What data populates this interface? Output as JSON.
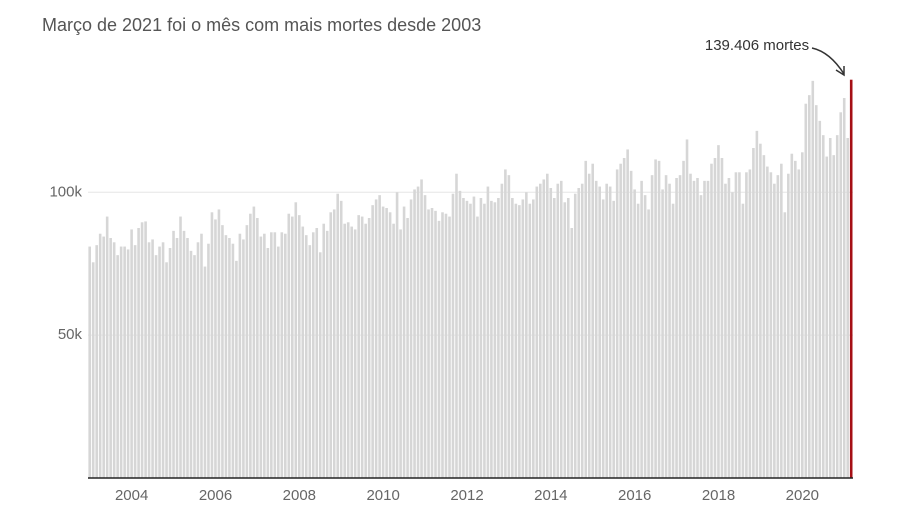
{
  "chart_data": {
    "type": "bar",
    "subtitle": "Março de 2021 foi o mês com mais mortes desde 2003",
    "annotation": "139.406 mortes",
    "color": "#d6d6d6",
    "highlight_color": "#a50f15",
    "ylim": [
      0,
      140000
    ],
    "yticks": [
      {
        "value": 50000,
        "label": "50k"
      },
      {
        "value": 100000,
        "label": "100k"
      }
    ],
    "grid": true,
    "categories": [
      null,
      null,
      null,
      null,
      null,
      null,
      null,
      null,
      null,
      null,
      null,
      null,
      "2004",
      null,
      null,
      null,
      null,
      null,
      null,
      null,
      null,
      null,
      null,
      null,
      null,
      null,
      null,
      null,
      null,
      null,
      null,
      null,
      null,
      null,
      null,
      null,
      "2006",
      null,
      null,
      null,
      null,
      null,
      null,
      null,
      null,
      null,
      null,
      null,
      null,
      null,
      null,
      null,
      null,
      null,
      null,
      null,
      null,
      null,
      null,
      null,
      "2008",
      null,
      null,
      null,
      null,
      null,
      null,
      null,
      null,
      null,
      null,
      null,
      null,
      null,
      null,
      null,
      null,
      null,
      null,
      null,
      null,
      null,
      null,
      null,
      "2010",
      null,
      null,
      null,
      null,
      null,
      null,
      null,
      null,
      null,
      null,
      null,
      null,
      null,
      null,
      null,
      null,
      null,
      null,
      null,
      null,
      null,
      null,
      null,
      "2012",
      null,
      null,
      null,
      null,
      null,
      null,
      null,
      null,
      null,
      null,
      null,
      null,
      null,
      null,
      null,
      null,
      null,
      null,
      null,
      null,
      null,
      null,
      null,
      "2014",
      null,
      null,
      null,
      null,
      null,
      null,
      null,
      null,
      null,
      null,
      null,
      null,
      null,
      null,
      null,
      null,
      null,
      null,
      null,
      null,
      null,
      null,
      null,
      "2016",
      null,
      null,
      null,
      null,
      null,
      null,
      null,
      null,
      null,
      null,
      null,
      null,
      null,
      null,
      null,
      null,
      null,
      null,
      null,
      null,
      null,
      null,
      null,
      "2018",
      null,
      null,
      null,
      null,
      null,
      null,
      null,
      null,
      null,
      null,
      null,
      null,
      null,
      null,
      null,
      null,
      null,
      null,
      null,
      null,
      null,
      null,
      null,
      "2020",
      null,
      null,
      null,
      null,
      null,
      null,
      null,
      null,
      null,
      null,
      null,
      null,
      null,
      null
    ],
    "values": [
      81000,
      75500,
      81500,
      85500,
      84500,
      91500,
      84000,
      82500,
      78000,
      81000,
      81000,
      80000,
      87000,
      81500,
      87500,
      89500,
      89800,
      82500,
      83500,
      78000,
      81000,
      82500,
      75500,
      80500,
      86500,
      84000,
      91500,
      86500,
      84000,
      79500,
      78000,
      82500,
      85500,
      74000,
      82000,
      93000,
      90500,
      94000,
      88500,
      85000,
      84000,
      82000,
      76000,
      85500,
      83500,
      88500,
      92500,
      95000,
      91000,
      84500,
      85500,
      80500,
      86000,
      86000,
      81000,
      86000,
      85500,
      92500,
      91500,
      96500,
      92000,
      88000,
      85000,
      81500,
      86000,
      87500,
      79000,
      89000,
      86500,
      93000,
      94000,
      99500,
      97000,
      89000,
      89500,
      88000,
      87000,
      92000,
      91500,
      89000,
      91000,
      95500,
      97500,
      99000,
      95000,
      94500,
      93000,
      89000,
      100000,
      87000,
      95000,
      91000,
      97500,
      101000,
      102000,
      104500,
      99000,
      94000,
      94500,
      93500,
      90000,
      93000,
      92500,
      91500,
      99500,
      106500,
      100500,
      98000,
      97000,
      96000,
      98500,
      91500,
      98000,
      96000,
      102000,
      97000,
      96500,
      98000,
      103000,
      108000,
      106000,
      98000,
      96000,
      95500,
      97500,
      100000,
      96000,
      97500,
      102000,
      103000,
      104500,
      106500,
      101500,
      98000,
      103000,
      104000,
      96500,
      98000,
      87500,
      99500,
      101500,
      103000,
      111000,
      106500,
      110000,
      104000,
      102000,
      97500,
      103000,
      102000,
      97000,
      108000,
      110000,
      112000,
      115000,
      107500,
      101000,
      96000,
      104000,
      99000,
      94000,
      106000,
      111500,
      111000,
      101000,
      106000,
      103000,
      96000,
      105000,
      106000,
      111000,
      118500,
      106500,
      104000,
      105000,
      99000,
      104000,
      104000,
      110000,
      112000,
      116500,
      112000,
      103000,
      105000,
      100000,
      107000,
      107000,
      96000,
      107000,
      108000,
      115500,
      121500,
      117000,
      113000,
      109000,
      107000,
      103000,
      106000,
      110000,
      93000,
      106500,
      113500,
      111000,
      108000,
      114000,
      131000,
      134000,
      139000,
      130500,
      125000,
      120000,
      112500,
      119000,
      113000,
      120000,
      128000,
      133000,
      119000,
      139406
    ]
  }
}
